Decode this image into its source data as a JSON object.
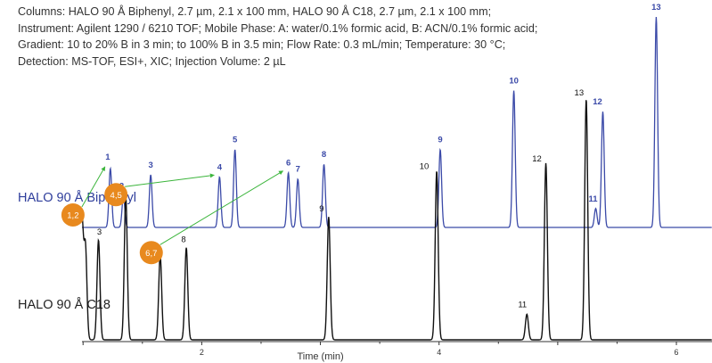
{
  "conditions_text": "Columns: HALO 90 Å Biphenyl, 2.7 µm, 2.1 x 100 mm, HALO 90 Å C18, 2.7 µm, 2.1 x 100 mm; Instrument: Agilent 1290 / 6210 TOF; Mobile Phase: A: water/0.1% formic acid, B: ACN/0.1% formic acid; Gradient: 10 to 20% B in 3 min; to 100% B in 3.5 min; Flow Rate: 0.3 mL/min; Temperature: 30 °C; Detection: MS-TOF, ESI+, XIC; Injection Volume: 2 µL",
  "colors": {
    "biphenyl": "#3b4aa8",
    "c18": "#111111",
    "arrow": "#3cb53c",
    "circle": "#e8891e",
    "axis": "#333333"
  },
  "chart_data": {
    "type": "line",
    "xlabel": "Time (min)",
    "xlim": [
      0.3,
      6.3
    ],
    "x_ticks": [
      2,
      4,
      6
    ],
    "series": [
      {
        "name": "HALO 90 Å Biphenyl",
        "peaks": [
          {
            "label": "1",
            "time": 1.23,
            "height": 0.28
          },
          {
            "label": "2",
            "time": 1.34,
            "height": 0.15
          },
          {
            "label": "3",
            "time": 1.57,
            "height": 0.25
          },
          {
            "label": "4",
            "time": 2.15,
            "height": 0.24
          },
          {
            "label": "5",
            "time": 2.28,
            "height": 0.37
          },
          {
            "label": "6",
            "time": 2.73,
            "height": 0.26
          },
          {
            "label": "7",
            "time": 2.81,
            "height": 0.23
          },
          {
            "label": "8",
            "time": 3.03,
            "height": 0.3
          },
          {
            "label": "9",
            "time": 4.01,
            "height": 0.37
          },
          {
            "label": "10",
            "time": 4.63,
            "height": 0.65
          },
          {
            "label": "11",
            "time": 5.32,
            "height": 0.09
          },
          {
            "label": "12",
            "time": 5.38,
            "height": 0.55
          },
          {
            "label": "13",
            "time": 5.83,
            "height": 1.0
          }
        ]
      },
      {
        "name": "HALO 90 Å C18",
        "peaks": [
          {
            "label": "1,2",
            "time": 0.99,
            "height": 0.46
          },
          {
            "label": "",
            "time": 1.02,
            "height": 0.36
          },
          {
            "label": "3",
            "time": 1.13,
            "height": 0.39
          },
          {
            "label": "4,5",
            "time": 1.36,
            "height": 0.56
          },
          {
            "label": "6,7",
            "time": 1.65,
            "height": 0.33
          },
          {
            "label": "8",
            "time": 1.87,
            "height": 0.36
          },
          {
            "label": "9",
            "time": 3.07,
            "height": 0.48
          },
          {
            "label": "10",
            "time": 3.98,
            "height": 0.66
          },
          {
            "label": "11",
            "time": 4.74,
            "height": 0.1
          },
          {
            "label": "12",
            "time": 4.9,
            "height": 0.69
          },
          {
            "label": "13",
            "time": 5.24,
            "height": 0.94
          }
        ]
      }
    ]
  }
}
